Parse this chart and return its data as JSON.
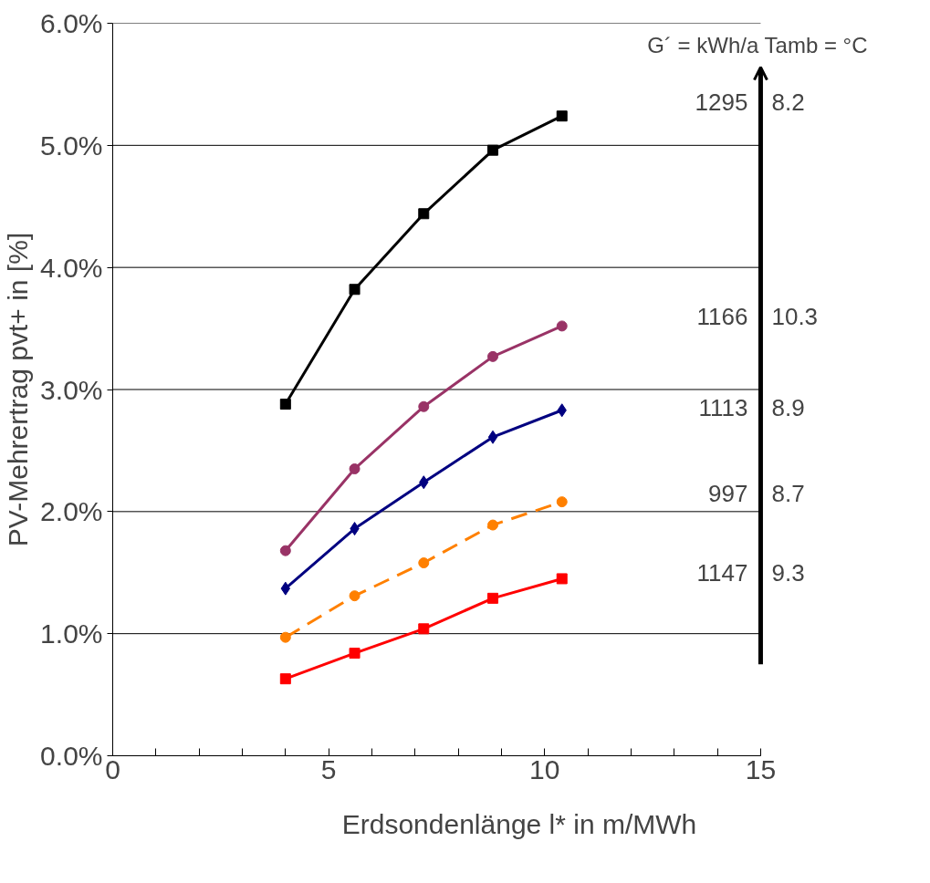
{
  "chart_data": {
    "type": "line",
    "xlabel": "Erdsondenlänge l* in m/MWh",
    "ylabel": "PV-Mehrertrag pvt+ in [%]",
    "xlim": [
      0,
      15
    ],
    "xticks": [
      0,
      {
        "value": 1,
        "label": null
      },
      {
        "value": 2,
        "label": null
      },
      {
        "value": 3,
        "label": null
      },
      {
        "value": 4,
        "label": null
      },
      5,
      {
        "value": 6,
        "label": null
      },
      {
        "value": 7,
        "label": null
      },
      {
        "value": 8,
        "label": null
      },
      {
        "value": 9,
        "label": null
      },
      10,
      {
        "value": 11,
        "label": null
      },
      {
        "value": 12,
        "label": null
      },
      {
        "value": 13,
        "label": null
      },
      {
        "value": 14,
        "label": null
      },
      15
    ],
    "ylim": [
      0,
      6
    ],
    "yticks": [
      {
        "value": 0,
        "label": "0.0%"
      },
      {
        "value": 1,
        "label": "1.0%"
      },
      {
        "value": 2,
        "label": "2.0%"
      },
      {
        "value": 3,
        "label": "3.0%"
      },
      {
        "value": 4,
        "label": "4.0%"
      },
      {
        "value": 5,
        "label": "5.0%"
      },
      {
        "value": 6,
        "label": "6.0%"
      }
    ],
    "grid": "y",
    "x": [
      4.0,
      5.6,
      7.2,
      8.8,
      10.4
    ],
    "series": [
      {
        "color": "#000000",
        "marker": "square",
        "line_style": "solid",
        "values": [
          2.88,
          3.82,
          4.44,
          4.96,
          5.24
        ]
      },
      {
        "color": "#993366",
        "marker": "circle",
        "line_style": "solid",
        "values": [
          1.68,
          2.35,
          2.86,
          3.27,
          3.52
        ]
      },
      {
        "color": "#000080",
        "marker": "diamond",
        "line_style": "solid",
        "values": [
          1.37,
          1.86,
          2.24,
          2.61,
          2.83
        ]
      },
      {
        "color": "#ff8000",
        "marker": "circle",
        "line_style": "dashed",
        "values": [
          0.97,
          1.31,
          1.58,
          1.89,
          2.08
        ]
      },
      {
        "color": "#ff0000",
        "marker": "square",
        "line_style": "solid",
        "values": [
          0.63,
          0.84,
          1.04,
          1.29,
          1.45
        ]
      }
    ],
    "annotations": [
      "G´ = kWh/a  Tamb = °C",
      "1295",
      "8.2",
      "1166",
      "10.3",
      "1113",
      "8.9",
      "997",
      "8.7",
      "1147",
      "9.3"
    ]
  }
}
